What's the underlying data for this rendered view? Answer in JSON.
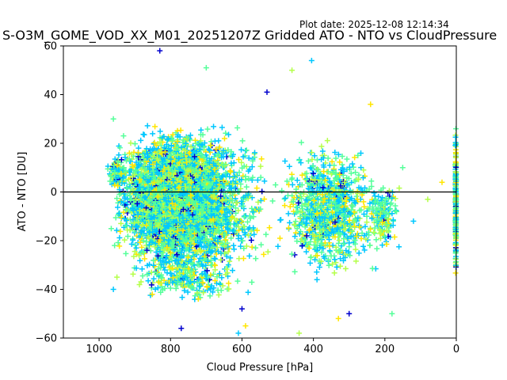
{
  "header": {
    "plot_date": "Plot date: 2025-12-08 12:14:34"
  },
  "chart_data": {
    "type": "scatter",
    "title": "S-O3M_GOME_VOD_XX_M01_20251207Z Gridded ATO - NTO vs CloudPressure",
    "xlabel": "Cloud Pressure [hPa]",
    "ylabel": "ATO - NTO [DU]",
    "xlim": [
      1100,
      0
    ],
    "ylim": [
      -60,
      60
    ],
    "x_inverted": true,
    "x_ticks": [
      1000,
      800,
      600,
      400,
      200,
      0
    ],
    "y_ticks": [
      -60,
      -40,
      -20,
      0,
      20,
      40,
      60
    ],
    "reference_line_y": 0,
    "grid": false,
    "marker": "+",
    "colors": [
      "#0000cd",
      "#00c8ff",
      "#55ff9a",
      "#b4ff4a",
      "#ffe600"
    ],
    "clusters": [
      {
        "x": [
          620,
          960
        ],
        "y": [
          -30,
          25
        ],
        "n": 3600
      },
      {
        "x": [
          500,
          960
        ],
        "y": [
          -40,
          30
        ],
        "n": 1500
      },
      {
        "x": [
          220,
          500
        ],
        "y": [
          -35,
          20
        ],
        "n": 900
      },
      {
        "x": [
          150,
          260
        ],
        "y": [
          -25,
          5
        ],
        "n": 150
      },
      {
        "x": [
          600,
          900
        ],
        "y": [
          -45,
          -25
        ],
        "n": 250
      },
      {
        "x": [
          920,
          980
        ],
        "y": [
          0,
          15
        ],
        "n": 120
      },
      {
        "x": [
          0,
          3
        ],
        "y": [
          -40,
          30
        ],
        "n": 220
      }
    ],
    "points": [
      {
        "x": 830,
        "y": 58
      },
      {
        "x": 405,
        "y": 54
      },
      {
        "x": 700,
        "y": 51
      },
      {
        "x": 460,
        "y": 50
      },
      {
        "x": 240,
        "y": 36
      },
      {
        "x": 530,
        "y": 41
      },
      {
        "x": 610,
        "y": -58
      },
      {
        "x": 180,
        "y": -50
      },
      {
        "x": 440,
        "y": -58
      },
      {
        "x": 330,
        "y": -52
      },
      {
        "x": 770,
        "y": -56
      },
      {
        "x": 960,
        "y": -40
      },
      {
        "x": 960,
        "y": 30
      },
      {
        "x": 950,
        "y": -35
      },
      {
        "x": 590,
        "y": -55
      },
      {
        "x": 300,
        "y": -50
      },
      {
        "x": 120,
        "y": -12
      },
      {
        "x": 150,
        "y": 10
      },
      {
        "x": 80,
        "y": -3
      },
      {
        "x": 40,
        "y": 4
      },
      {
        "x": 600,
        "y": -48
      },
      {
        "x": 390,
        "y": -36
      }
    ]
  }
}
